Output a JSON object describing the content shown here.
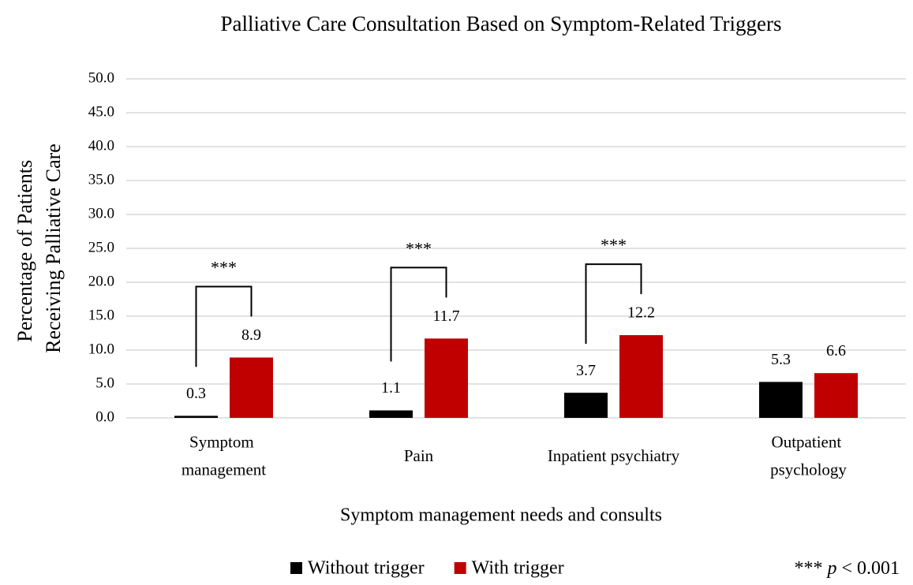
{
  "chart_data": {
    "type": "bar",
    "title": "Palliative Care Consultation Based on Symptom-Related Triggers",
    "xlabel": "Symptom management needs and consults",
    "ylabel": "Percentage of Patients\nReceiving Palliative Care",
    "categories": [
      "Symptom\nmanagement",
      "Pain",
      "Inpatient psychiatry",
      "Outpatient\npsychology"
    ],
    "series": [
      {
        "name": "Without trigger",
        "color": "#000000",
        "values": [
          0.3,
          1.1,
          3.7,
          5.3
        ]
      },
      {
        "name": "With trigger",
        "color": "#c00000",
        "values": [
          8.9,
          11.7,
          12.2,
          6.6
        ]
      }
    ],
    "significance": [
      "***",
      "***",
      "***",
      null
    ],
    "note": "*** p < 0.001",
    "ylim": [
      0,
      50
    ],
    "yticks": [
      {
        "value": 0,
        "label": "0.0"
      },
      {
        "value": 5,
        "label": "5.0"
      },
      {
        "value": 10,
        "label": "10.0"
      },
      {
        "value": 15,
        "label": "15.0"
      },
      {
        "value": 20,
        "label": "20.0"
      },
      {
        "value": 25,
        "label": "25.0"
      },
      {
        "value": 30,
        "label": "30.0"
      },
      {
        "value": 35,
        "label": "35.0"
      },
      {
        "value": 40,
        "label": "40.0"
      },
      {
        "value": 45,
        "label": "45.0"
      },
      {
        "value": 50,
        "label": "50.0"
      }
    ],
    "grid": true,
    "legend": "bottom"
  }
}
